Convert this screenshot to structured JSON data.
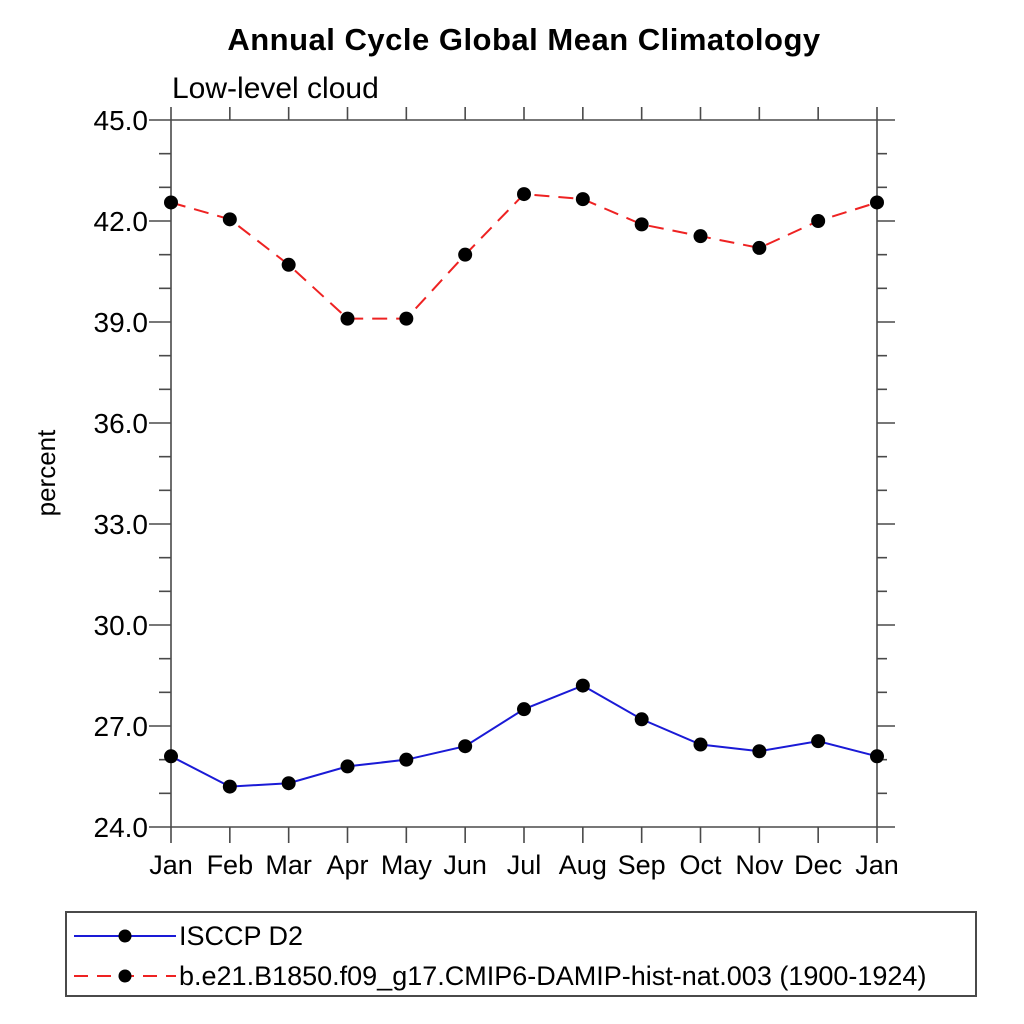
{
  "page": {
    "background": "#ffffff"
  },
  "chart_data": {
    "type": "line",
    "title": "Annual Cycle Global Mean Climatology",
    "subtitle": "Low-level cloud",
    "ylabel": "percent",
    "xlabel": "",
    "x_tick_labels": [
      "Jan",
      "Feb",
      "Mar",
      "Apr",
      "May",
      "Jun",
      "Jul",
      "Aug",
      "Sep",
      "Oct",
      "Nov",
      "Dec",
      "Jan"
    ],
    "y_tick_labels": [
      "45.0",
      "42.0",
      "39.0",
      "36.0",
      "33.0",
      "30.0",
      "27.0",
      "24.0"
    ],
    "ylim": [
      24.0,
      45.0
    ],
    "y_major_step": 3.0,
    "y_minor_step": 1.0,
    "grid": false,
    "legend_position": "bottom-left-boxed",
    "series": [
      {
        "name": "ISCCP D2",
        "color": "#1a1ad6",
        "line_style": "solid",
        "line_width": 2,
        "marker": "filled-circle",
        "marker_color": "#000000",
        "values": [
          26.1,
          25.2,
          25.3,
          25.8,
          26.0,
          26.4,
          27.5,
          28.2,
          27.2,
          26.45,
          26.25,
          26.55,
          26.1
        ]
      },
      {
        "name": "b.e21.B1850.f09_g17.CMIP6-DAMIP-hist-nat.003 (1900-1924)",
        "color": "#ee2222",
        "line_style": "dashed",
        "line_width": 2,
        "marker": "filled-circle",
        "marker_color": "#000000",
        "values": [
          42.55,
          42.05,
          40.7,
          39.1,
          39.1,
          41.0,
          42.8,
          42.65,
          41.9,
          41.55,
          41.2,
          42.0,
          42.55
        ]
      }
    ]
  },
  "style": {
    "axis_color": "#4a4a4a",
    "text_color": "#000000",
    "legend_border_color": "#4a4a4a"
  }
}
